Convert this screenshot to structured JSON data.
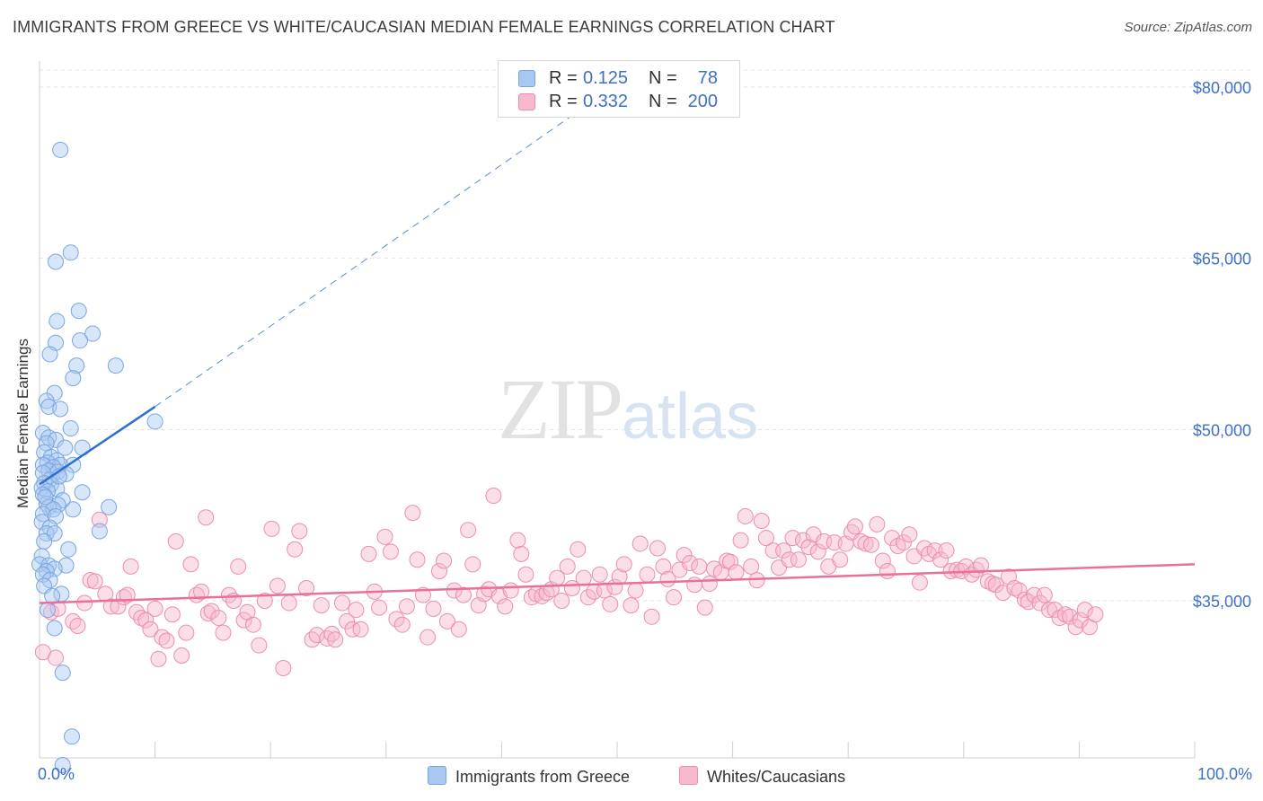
{
  "header": {
    "title": "IMMIGRANTS FROM GREECE VS WHITE/CAUCASIAN MEDIAN FEMALE EARNINGS CORRELATION CHART",
    "source": "Source: ZipAtlas.com"
  },
  "watermark": {
    "zip": "ZIP",
    "atlas": "atlas"
  },
  "legend": {
    "rows": [
      {
        "r_label": "R =",
        "r_value": "0.125",
        "n_label": "N =",
        "n_value": "78",
        "color": "#a9c8f1"
      },
      {
        "r_label": "R =",
        "r_value": "0.332",
        "n_label": "N =",
        "n_value": "200",
        "color": "#f6b9cd"
      }
    ]
  },
  "bottom_legend": {
    "items": [
      {
        "label": "Immigrants from Greece",
        "color": "#a9c8f1"
      },
      {
        "label": "Whites/Caucasians",
        "color": "#f6b9cd"
      }
    ]
  },
  "chart_data": {
    "type": "scatter",
    "title": "IMMIGRANTS FROM GREECE VS WHITE/CAUCASIAN MEDIAN FEMALE EARNINGS CORRELATION CHART",
    "xlabel": "",
    "ylabel": "Median Female Earnings",
    "xlim": [
      0,
      100
    ],
    "ylim": [
      21000,
      83000
    ],
    "x_tick_labels": [
      "0.0%",
      "100.0%"
    ],
    "y_ticks": [
      35000,
      50000,
      65000,
      80000
    ],
    "y_tick_labels": [
      "$35,000",
      "$50,000",
      "$65,000",
      "$80,000"
    ],
    "grid": true,
    "colors": {
      "blue": "#a9c8f1",
      "blue_stroke": "#7aa6de",
      "blue_line": "#2f6fd0",
      "pink": "#f6b9cd",
      "pink_stroke": "#ec8db0",
      "pink_line": "#e8709a",
      "axis_text": "#3e6fc9"
    },
    "series": [
      {
        "name": "Immigrants from Greece",
        "color": "#a9c8f1",
        "points": [
          [
            1.8,
            74.5
          ],
          [
            1.4,
            64.7
          ],
          [
            2.7,
            65.5
          ],
          [
            1.5,
            59.5
          ],
          [
            3.4,
            60.4
          ],
          [
            4.6,
            58.4
          ],
          [
            1.4,
            57.6
          ],
          [
            3.5,
            57.8
          ],
          [
            0.9,
            56.6
          ],
          [
            3.2,
            55.6
          ],
          [
            6.6,
            55.6
          ],
          [
            2.9,
            54.5
          ],
          [
            1.3,
            53.2
          ],
          [
            0.6,
            52.5
          ],
          [
            0.8,
            52.0
          ],
          [
            1.8,
            51.8
          ],
          [
            10.0,
            50.7
          ],
          [
            2.7,
            50.1
          ],
          [
            0.3,
            49.7
          ],
          [
            0.8,
            49.3
          ],
          [
            1.4,
            49.1
          ],
          [
            0.6,
            48.8
          ],
          [
            2.2,
            48.4
          ],
          [
            3.7,
            48.4
          ],
          [
            0.4,
            48.0
          ],
          [
            1.0,
            47.6
          ],
          [
            1.5,
            47.3
          ],
          [
            0.7,
            47.1
          ],
          [
            0.3,
            46.9
          ],
          [
            1.8,
            46.9
          ],
          [
            2.9,
            46.9
          ],
          [
            1.2,
            46.7
          ],
          [
            0.8,
            46.4
          ],
          [
            0.3,
            46.2
          ],
          [
            1.6,
            46.3
          ],
          [
            2.3,
            46.1
          ],
          [
            0.9,
            45.6
          ],
          [
            0.4,
            45.3
          ],
          [
            1.0,
            45.2
          ],
          [
            0.2,
            44.9
          ],
          [
            1.5,
            44.8
          ],
          [
            0.7,
            44.6
          ],
          [
            3.7,
            44.5
          ],
          [
            0.3,
            44.3
          ],
          [
            2.0,
            43.8
          ],
          [
            0.6,
            43.5
          ],
          [
            1.6,
            43.4
          ],
          [
            0.8,
            43.2
          ],
          [
            1.2,
            43.0
          ],
          [
            2.9,
            43.0
          ],
          [
            6.0,
            43.2
          ],
          [
            0.3,
            42.6
          ],
          [
            1.4,
            42.4
          ],
          [
            0.2,
            41.9
          ],
          [
            0.9,
            41.4
          ],
          [
            5.2,
            41.1
          ],
          [
            0.6,
            40.9
          ],
          [
            1.3,
            40.9
          ],
          [
            0.4,
            40.2
          ],
          [
            2.5,
            39.5
          ],
          [
            0.2,
            38.9
          ],
          [
            0.0,
            38.2
          ],
          [
            0.8,
            38.1
          ],
          [
            2.3,
            38.1
          ],
          [
            1.3,
            37.8
          ],
          [
            0.6,
            37.6
          ],
          [
            0.3,
            37.3
          ],
          [
            0.9,
            36.8
          ],
          [
            0.4,
            36.3
          ],
          [
            1.9,
            35.6
          ],
          [
            0.7,
            34.2
          ],
          [
            1.3,
            32.6
          ],
          [
            2.0,
            28.7
          ],
          [
            2.8,
            23.1
          ],
          [
            2.0,
            20.6
          ],
          [
            1.1,
            35.4
          ],
          [
            0.5,
            44.1
          ],
          [
            1.7,
            45.9
          ]
        ],
        "fit_line": {
          "x": [
            0.0,
            10.0
          ],
          "y": [
            45.2,
            52.0
          ]
        },
        "fit_line_extended": {
          "x": [
            10.0,
            47.5
          ],
          "y": [
            52.0,
            78.5
          ]
        }
      },
      {
        "name": "Whites/Caucasians",
        "color": "#f6b9cd",
        "points": [
          [
            0.3,
            30.5
          ],
          [
            1.4,
            30.0
          ],
          [
            1.0,
            34.0
          ],
          [
            1.6,
            34.3
          ],
          [
            2.9,
            33.2
          ],
          [
            3.3,
            32.8
          ],
          [
            3.9,
            34.8
          ],
          [
            4.4,
            36.8
          ],
          [
            4.8,
            36.7
          ],
          [
            5.2,
            42.1
          ],
          [
            5.7,
            35.6
          ],
          [
            6.2,
            34.5
          ],
          [
            6.8,
            34.5
          ],
          [
            7.3,
            35.3
          ],
          [
            7.6,
            35.5
          ],
          [
            7.9,
            38.0
          ],
          [
            8.4,
            34.0
          ],
          [
            8.8,
            33.5
          ],
          [
            9.2,
            33.3
          ],
          [
            9.6,
            32.5
          ],
          [
            10.0,
            34.3
          ],
          [
            10.3,
            29.9
          ],
          [
            10.6,
            31.8
          ],
          [
            11.0,
            31.5
          ],
          [
            11.5,
            33.8
          ],
          [
            11.8,
            40.2
          ],
          [
            12.3,
            30.2
          ],
          [
            12.7,
            32.2
          ],
          [
            13.1,
            38.2
          ],
          [
            13.6,
            35.5
          ],
          [
            14.0,
            35.8
          ],
          [
            14.4,
            42.3
          ],
          [
            14.6,
            33.9
          ],
          [
            14.9,
            34.1
          ],
          [
            15.5,
            33.5
          ],
          [
            15.9,
            32.2
          ],
          [
            16.4,
            35.5
          ],
          [
            16.8,
            35.0
          ],
          [
            17.2,
            38.0
          ],
          [
            17.7,
            33.3
          ],
          [
            18.0,
            34.0
          ],
          [
            18.5,
            32.9
          ],
          [
            19.0,
            31.1
          ],
          [
            19.5,
            35.0
          ],
          [
            20.1,
            41.3
          ],
          [
            20.6,
            36.3
          ],
          [
            21.1,
            29.1
          ],
          [
            21.6,
            34.8
          ],
          [
            22.1,
            39.5
          ],
          [
            22.5,
            41.1
          ],
          [
            23.1,
            36.1
          ],
          [
            23.6,
            31.6
          ],
          [
            24.0,
            32.0
          ],
          [
            24.4,
            34.6
          ],
          [
            24.9,
            31.7
          ],
          [
            25.3,
            32.1
          ],
          [
            25.6,
            31.6
          ],
          [
            26.2,
            34.8
          ],
          [
            26.6,
            33.2
          ],
          [
            27.1,
            32.5
          ],
          [
            27.4,
            34.2
          ],
          [
            27.8,
            32.5
          ],
          [
            28.5,
            39.1
          ],
          [
            29.0,
            35.8
          ],
          [
            29.4,
            34.4
          ],
          [
            29.9,
            40.6
          ],
          [
            30.4,
            39.3
          ],
          [
            30.9,
            33.4
          ],
          [
            31.4,
            32.9
          ],
          [
            31.8,
            34.5
          ],
          [
            32.3,
            42.7
          ],
          [
            32.7,
            38.6
          ],
          [
            33.2,
            35.5
          ],
          [
            33.6,
            31.8
          ],
          [
            34.1,
            34.3
          ],
          [
            34.6,
            37.6
          ],
          [
            35.0,
            38.5
          ],
          [
            35.3,
            33.2
          ],
          [
            35.9,
            35.9
          ],
          [
            36.3,
            32.5
          ],
          [
            36.7,
            35.5
          ],
          [
            37.1,
            41.2
          ],
          [
            37.5,
            38.2
          ],
          [
            38.0,
            34.6
          ],
          [
            38.5,
            35.6
          ],
          [
            38.9,
            36.0
          ],
          [
            39.3,
            44.2
          ],
          [
            39.8,
            35.4
          ],
          [
            40.3,
            34.5
          ],
          [
            40.8,
            35.9
          ],
          [
            41.4,
            40.3
          ],
          [
            41.7,
            39.1
          ],
          [
            42.1,
            37.3
          ],
          [
            42.6,
            35.3
          ],
          [
            43.0,
            35.6
          ],
          [
            43.5,
            35.4
          ],
          [
            43.9,
            35.7
          ],
          [
            44.3,
            36.0
          ],
          [
            44.8,
            37.0
          ],
          [
            45.2,
            35.0
          ],
          [
            45.7,
            38.0
          ],
          [
            46.1,
            36.1
          ],
          [
            46.6,
            39.5
          ],
          [
            47.1,
            37.0
          ],
          [
            47.5,
            35.3
          ],
          [
            48.0,
            35.8
          ],
          [
            48.5,
            37.3
          ],
          [
            48.9,
            35.9
          ],
          [
            49.4,
            34.7
          ],
          [
            49.8,
            36.2
          ],
          [
            50.2,
            37.1
          ],
          [
            50.6,
            38.2
          ],
          [
            51.2,
            34.6
          ],
          [
            51.6,
            35.9
          ],
          [
            52.0,
            40.0
          ],
          [
            52.6,
            37.3
          ],
          [
            53.0,
            33.6
          ],
          [
            53.5,
            39.6
          ],
          [
            54.0,
            38.0
          ],
          [
            54.4,
            36.9
          ],
          [
            54.9,
            35.3
          ],
          [
            55.4,
            37.7
          ],
          [
            55.8,
            39.0
          ],
          [
            56.3,
            38.3
          ],
          [
            56.7,
            36.4
          ],
          [
            57.1,
            38.0
          ],
          [
            57.6,
            34.4
          ],
          [
            58.0,
            36.5
          ],
          [
            58.4,
            37.8
          ],
          [
            59.0,
            37.5
          ],
          [
            59.5,
            38.5
          ],
          [
            59.8,
            38.4
          ],
          [
            60.3,
            37.5
          ],
          [
            60.7,
            40.3
          ],
          [
            61.1,
            42.4
          ],
          [
            61.6,
            38.0
          ],
          [
            62.1,
            36.8
          ],
          [
            62.5,
            42.0
          ],
          [
            62.9,
            40.5
          ],
          [
            63.5,
            39.4
          ],
          [
            64.0,
            37.9
          ],
          [
            64.4,
            39.4
          ],
          [
            64.9,
            38.6
          ],
          [
            65.2,
            40.5
          ],
          [
            65.7,
            38.6
          ],
          [
            66.1,
            40.3
          ],
          [
            66.6,
            39.7
          ],
          [
            67.0,
            40.8
          ],
          [
            67.4,
            39.3
          ],
          [
            67.9,
            40.2
          ],
          [
            68.3,
            38.0
          ],
          [
            68.8,
            40.1
          ],
          [
            69.3,
            38.6
          ],
          [
            69.8,
            40.0
          ],
          [
            70.3,
            41.0
          ],
          [
            70.6,
            41.5
          ],
          [
            71.1,
            40.2
          ],
          [
            71.5,
            40.0
          ],
          [
            72.0,
            39.9
          ],
          [
            72.5,
            41.7
          ],
          [
            73.0,
            38.5
          ],
          [
            73.4,
            37.6
          ],
          [
            73.8,
            40.5
          ],
          [
            74.3,
            39.8
          ],
          [
            74.8,
            40.1
          ],
          [
            75.3,
            40.8
          ],
          [
            75.7,
            38.9
          ],
          [
            76.2,
            36.6
          ],
          [
            76.6,
            39.6
          ],
          [
            77.0,
            39.1
          ],
          [
            77.5,
            39.4
          ],
          [
            78.0,
            38.6
          ],
          [
            78.5,
            39.4
          ],
          [
            78.9,
            37.6
          ],
          [
            79.4,
            37.7
          ],
          [
            79.8,
            37.6
          ],
          [
            80.2,
            38.0
          ],
          [
            80.7,
            37.3
          ],
          [
            81.1,
            37.7
          ],
          [
            81.5,
            38.1
          ],
          [
            82.1,
            36.7
          ],
          [
            82.5,
            36.5
          ],
          [
            82.8,
            36.4
          ],
          [
            83.4,
            35.7
          ],
          [
            83.9,
            37.1
          ],
          [
            84.4,
            36.1
          ],
          [
            84.8,
            35.9
          ],
          [
            85.3,
            35.1
          ],
          [
            85.6,
            34.9
          ],
          [
            86.1,
            35.5
          ],
          [
            86.6,
            34.8
          ],
          [
            87.0,
            35.5
          ],
          [
            87.4,
            34.2
          ],
          [
            87.9,
            34.2
          ],
          [
            88.3,
            33.5
          ],
          [
            88.8,
            33.8
          ],
          [
            89.2,
            33.6
          ],
          [
            89.7,
            32.7
          ],
          [
            90.1,
            33.3
          ],
          [
            90.5,
            34.2
          ],
          [
            90.9,
            32.7
          ],
          [
            91.4,
            33.8
          ]
        ],
        "fit_line": {
          "x": [
            0.0,
            100.0
          ],
          "y": [
            34.8,
            38.2
          ]
        }
      }
    ]
  }
}
